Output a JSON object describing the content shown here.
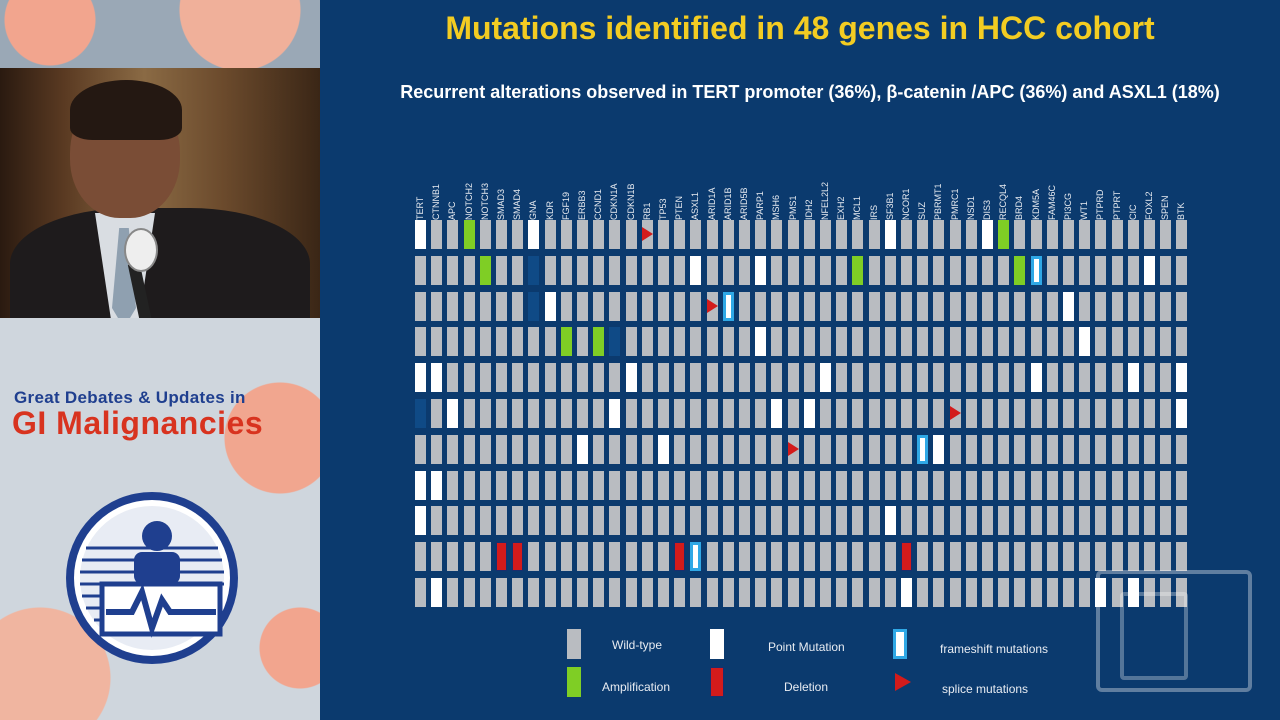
{
  "sidebar": {
    "conference_line1": "Great Debates & Updates in",
    "conference_line2": "GI Malignancies"
  },
  "slide": {
    "title": "Mutations identified in 48 genes in HCC cohort",
    "subtitle": "Recurrent alterations observed in TERT promoter (36%), β-catenin /APC (36%) and ASXL1 (18%)",
    "genes": [
      "TERT",
      "CTNNB1",
      "APC",
      "NOTCH2",
      "NOTCH3",
      "SMAD3",
      "SMAD4",
      "GNA",
      "KDR",
      "FGF19",
      "ERBB3",
      "CCND1",
      "CDKN1A",
      "CDKN1B",
      "RB1",
      "TP53",
      "PTEN",
      "ASXL1",
      "ARID1A",
      "ARID1B",
      "ARID5B",
      "PARP1",
      "MSH6",
      "PMS1",
      "IDH2",
      "NFEL2L2",
      "EXH2",
      "MCL1",
      "IRS",
      "SF3B1",
      "NCOR1",
      "SUZ",
      "PBRMT1",
      "PMRC1",
      "NSD1",
      "DIS3",
      "RECQL4",
      "BRD4",
      "KDM5A",
      "FAM46C",
      "PI3CG",
      "WT1",
      "PTPRD",
      "PTPRT",
      "CIC",
      "FOXL2",
      "SPEN",
      "BTK"
    ],
    "legend": {
      "wild_type": "Wild-type",
      "point": "Point Mutation",
      "frameshift": "frameshift mutations",
      "amplification": "Amplification",
      "deletion": "Deletion",
      "splice": "splice mutations"
    },
    "colors": {
      "background": "#0b3a6e",
      "title": "#f3cc22",
      "wild_type": "#b9bcc1",
      "point": "#ffffff",
      "amplification": "#7fce25",
      "deletion": "#d31b1b",
      "frameshift_border": "#2fa8e6",
      "splice": "#d31b1b"
    },
    "matrix_codes": "W=wild-type, P=point, A=amplification, D=deletion, F=frameshift, S=splice, K=dark/absent",
    "matrix": [
      "PWWAWWWPWWWWWWSWWWWWWWWWWWWWWPWWWWWPAWWWWWWWWWWW",
      "WWWWAWWKWWWWWWWWWPWWWPWWWWWAWWWWWWWWWAFWWWWWWPWW",
      "WWWWWWWKPWWWWWWWWWSFWWWWWWWWWWWWWWWWWWWWPWWWWWWW",
      "WWWWWWWWWAWAKWWWWWWWWPWWWWWWWWWWWWWWWWWWWPWWWWWW",
      "PPWWWWWWWWWWWPWWWWWWWWWWWPWWWWWWWWWWWWPWWWWWPWWP",
      "KWPWWWWWWWWWPWWWWWWWWWPWPWWWWWWWWSWWWWWWWWWWWWWP",
      "WWWWWWWWWWPWWWWPWWWWWWWSWWWWWWWFPWWWWWWWWWWWWWWW",
      "PPWWWWWWWWWWWWWWWWWWWWWWWWWWWWWWWWWWWWWWWWWWWWWW",
      "PWWWWWWWWWWWWWWWWWWWWWWWWWWWWPWWWWWWWWWWWWWWWWWW",
      "WWWWWDDWWWWWWWWWDFWWWWWWWWWWWWDWWWWWWWWWWWWWWWWW",
      "WPWWWWWWWWWWWWWWWWWWWWWWWWWWWWPWWWWWWWWWWWPWPWWW"
    ]
  }
}
